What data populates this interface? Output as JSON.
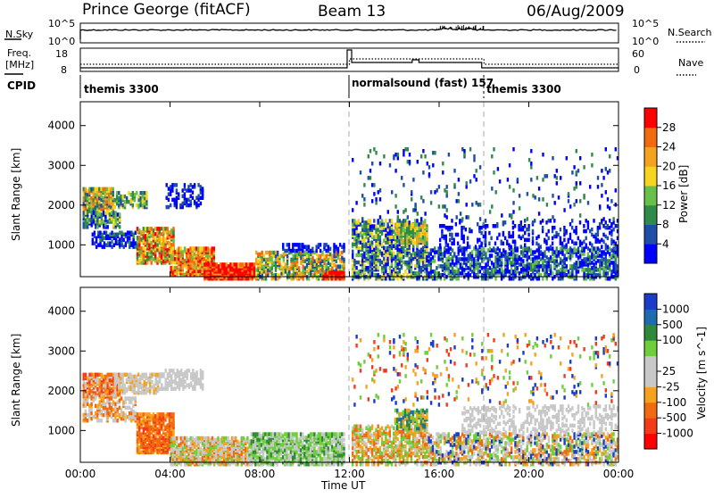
{
  "header": {
    "station": "Prince George (fitACF)",
    "beam": "Beam 13",
    "date": "06/Aug/2009"
  },
  "noise_panel": {
    "left_label": "N.Sky",
    "left_ticks": [
      "10^5",
      "10^0"
    ],
    "right_label": "N.Search",
    "right_ticks": [
      "10^5",
      "10^0"
    ]
  },
  "freq_panel": {
    "left_label_line1": "Freq.",
    "left_label_line2": "[MHz]",
    "left_ticks": [
      "18",
      "8"
    ],
    "right_label": "Nave",
    "right_ticks": [
      "60",
      "0"
    ]
  },
  "cpid": {
    "label": "CPID",
    "segments": [
      {
        "name": "themis 3300",
        "start_hour": 0
      },
      {
        "name": "normalsound (fast) 157",
        "start_hour": 12.1
      },
      {
        "name": "themis 3300",
        "start_hour": 18
      }
    ]
  },
  "colors": {
    "power_scale": [
      "#0000ff",
      "#1e4ea8",
      "#2f8b4a",
      "#68c04a",
      "#f5d51e",
      "#f5a31e",
      "#f26a10",
      "#ff0000"
    ],
    "velocity_scale": [
      "#1b3cc8",
      "#1f6bb0",
      "#2e8a3a",
      "#6fcf3a",
      "#c8c8c8",
      "#c8c8c8",
      "#f5a31e",
      "#f26a10",
      "#f53a1a",
      "#ff0000"
    ]
  },
  "chart_data": [
    {
      "type": "heatmap",
      "panel": "power",
      "ylabel": "Slant Range [km]",
      "yticks": [
        "1000",
        "2000",
        "3000",
        "4000"
      ],
      "ylim": [
        200,
        4600
      ],
      "xlim_hours": [
        0,
        24
      ],
      "colorbar_label": "Power [dB]",
      "colorbar_ticks": [
        "4",
        "8",
        "12",
        "16",
        "20",
        "24",
        "28"
      ]
    },
    {
      "type": "heatmap",
      "panel": "velocity",
      "ylabel": "Slant Range [km]",
      "yticks": [
        "1000",
        "2000",
        "3000",
        "4000"
      ],
      "ylim": [
        200,
        4600
      ],
      "xlim_hours": [
        0,
        24
      ],
      "colorbar_label": "Velocity [m s^-1]",
      "colorbar_ticks": [
        "1000",
        "500",
        "100",
        "25",
        "-25",
        "-100",
        "-500",
        "-1000"
      ]
    }
  ],
  "x_axis": {
    "label": "Time UT",
    "ticks": [
      "00:00",
      "04:00",
      "08:00",
      "12:00",
      "16:00",
      "20:00",
      "00:00"
    ]
  }
}
